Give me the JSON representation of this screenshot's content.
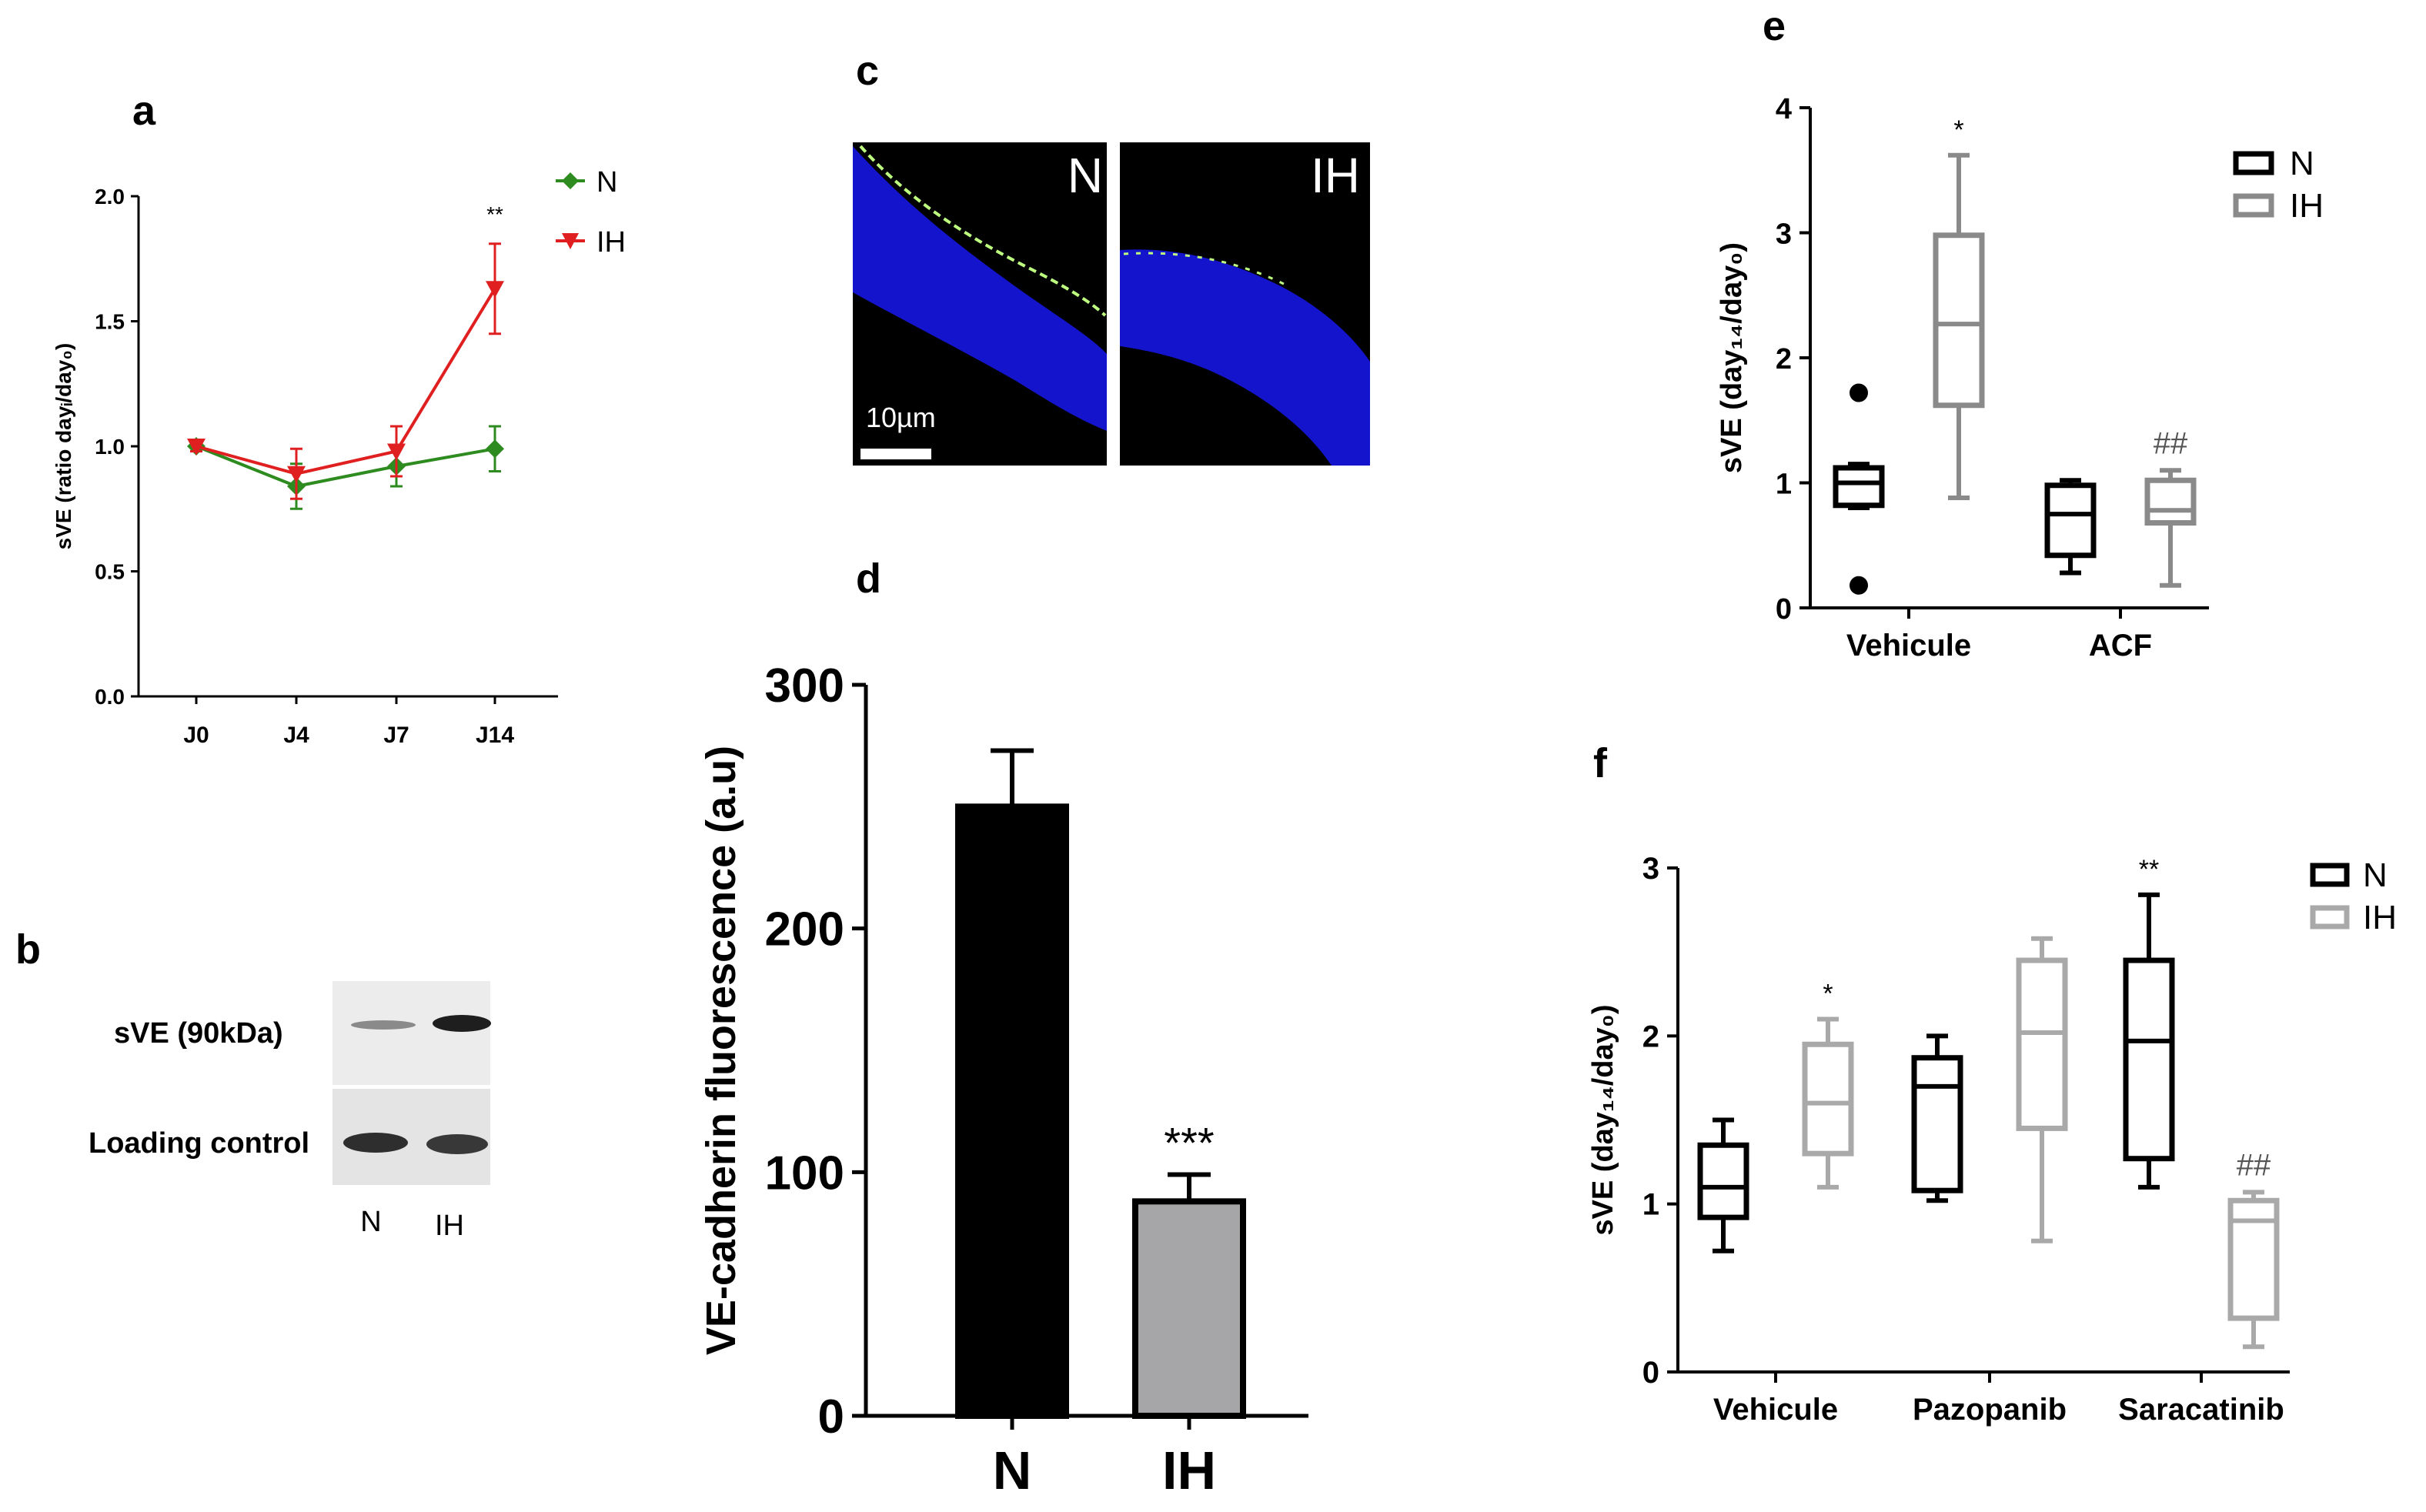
{
  "panel_letters": {
    "a": "a",
    "b": "b",
    "c": "c",
    "d": "d",
    "e": "e",
    "f": "f"
  },
  "colors": {
    "N_line": "#2e8b1f",
    "IH_line": "#e02020",
    "N_box": "#000000",
    "IH_box_e": "#8a8a8a",
    "IH_box_f": "#a9a9a9",
    "bar_N": "#000000",
    "bar_IH": "#a6a6a8",
    "image_bg": "#000000",
    "nuclei": "#1010d8",
    "stain": "#c8ff80"
  },
  "chart_data": [
    {
      "panel": "a",
      "type": "line",
      "categories": [
        "J0",
        "J4",
        "J7",
        "J14"
      ],
      "ylabel": "sVE (ratio dayᵢ/day₀)",
      "ylim": [
        0,
        2.0
      ],
      "yticks": [
        "0.0",
        "0.5",
        "1.0",
        "1.5",
        "2.0"
      ],
      "series": [
        {
          "name": "N",
          "values": [
            1.0,
            0.84,
            0.92,
            0.99
          ],
          "err": [
            0.02,
            0.09,
            0.08,
            0.09
          ],
          "marker": "diamond"
        },
        {
          "name": "IH",
          "values": [
            1.0,
            0.89,
            0.98,
            1.63
          ],
          "err": [
            0.02,
            0.1,
            0.1,
            0.18
          ],
          "marker": "triangle-down"
        }
      ],
      "annotations": [
        {
          "category": "J14",
          "text": "**"
        }
      ],
      "legend": "top-right"
    },
    {
      "panel": "d",
      "type": "bar",
      "categories": [
        "N",
        "IH"
      ],
      "values": [
        250,
        88
      ],
      "err": [
        23,
        11
      ],
      "ylabel": "VE-cadherin fluorescence (a.u)",
      "ylim": [
        0,
        300
      ],
      "yticks": [
        "0",
        "100",
        "200",
        "300"
      ],
      "annotations": [
        {
          "category": "IH",
          "text": "***"
        }
      ]
    },
    {
      "panel": "e",
      "type": "box",
      "categories": [
        "Vehicule",
        "ACF"
      ],
      "ylabel": "sVE (day₁₄/day₀)",
      "ylim": [
        0,
        4
      ],
      "yticks": [
        "0",
        "1",
        "2",
        "3",
        "4"
      ],
      "series": [
        {
          "name": "N",
          "boxes": [
            {
              "min": 0.8,
              "q1": 0.82,
              "median": 1.0,
              "q3": 1.12,
              "max": 1.15,
              "outliers": [
                1.72,
                0.18
              ]
            },
            {
              "min": 0.28,
              "q1": 0.42,
              "median": 0.75,
              "q3": 0.98,
              "max": 1.02,
              "outliers": []
            }
          ]
        },
        {
          "name": "IH",
          "boxes": [
            {
              "min": 0.88,
              "q1": 1.62,
              "median": 2.27,
              "q3": 2.98,
              "max": 3.62,
              "outliers": []
            },
            {
              "min": 0.18,
              "q1": 0.68,
              "median": 0.78,
              "q3": 1.02,
              "max": 1.1,
              "outliers": []
            }
          ]
        }
      ],
      "annotations": [
        {
          "text": "*",
          "group": "Vehicule",
          "series": "IH"
        },
        {
          "text": "##",
          "group": "ACF",
          "series": "IH"
        }
      ],
      "legend": "top-right"
    },
    {
      "panel": "f",
      "type": "box",
      "categories": [
        "Vehicule",
        "Pazopanib",
        "Saracatinib"
      ],
      "ylabel": "sVE (day₁₄/day₀)",
      "ylim": [
        0,
        3
      ],
      "yticks": [
        "0",
        "1",
        "2",
        "3"
      ],
      "series": [
        {
          "name": "N",
          "boxes": [
            {
              "min": 0.72,
              "q1": 0.92,
              "median": 1.1,
              "q3": 1.35,
              "max": 1.5
            },
            {
              "min": 1.02,
              "q1": 1.08,
              "median": 1.7,
              "q3": 1.87,
              "max": 2.0
            },
            {
              "min": 1.1,
              "q1": 1.27,
              "median": 1.97,
              "q3": 2.45,
              "max": 2.84
            }
          ]
        },
        {
          "name": "IH",
          "boxes": [
            {
              "min": 1.1,
              "q1": 1.3,
              "median": 1.6,
              "q3": 1.95,
              "max": 2.1
            },
            {
              "min": 0.78,
              "q1": 1.45,
              "median": 2.02,
              "q3": 2.45,
              "max": 2.58
            },
            {
              "min": 0.15,
              "q1": 0.32,
              "median": 0.9,
              "q3": 1.02,
              "max": 1.07
            }
          ]
        }
      ],
      "annotations": [
        {
          "text": "*",
          "group": "Vehicule",
          "series": "IH"
        },
        {
          "text": "**",
          "group": "Saracatinib",
          "series": "N"
        },
        {
          "text": "##",
          "group": "Saracatinib",
          "series": "IH"
        }
      ],
      "legend": "top-right"
    }
  ],
  "panel_b": {
    "row_labels": [
      "sVE (90kDa)",
      "Loading control"
    ],
    "lane_labels": [
      "N",
      "IH"
    ]
  },
  "panel_c": {
    "image_labels": [
      "N",
      "IH"
    ],
    "scale_bar": "10µm"
  }
}
